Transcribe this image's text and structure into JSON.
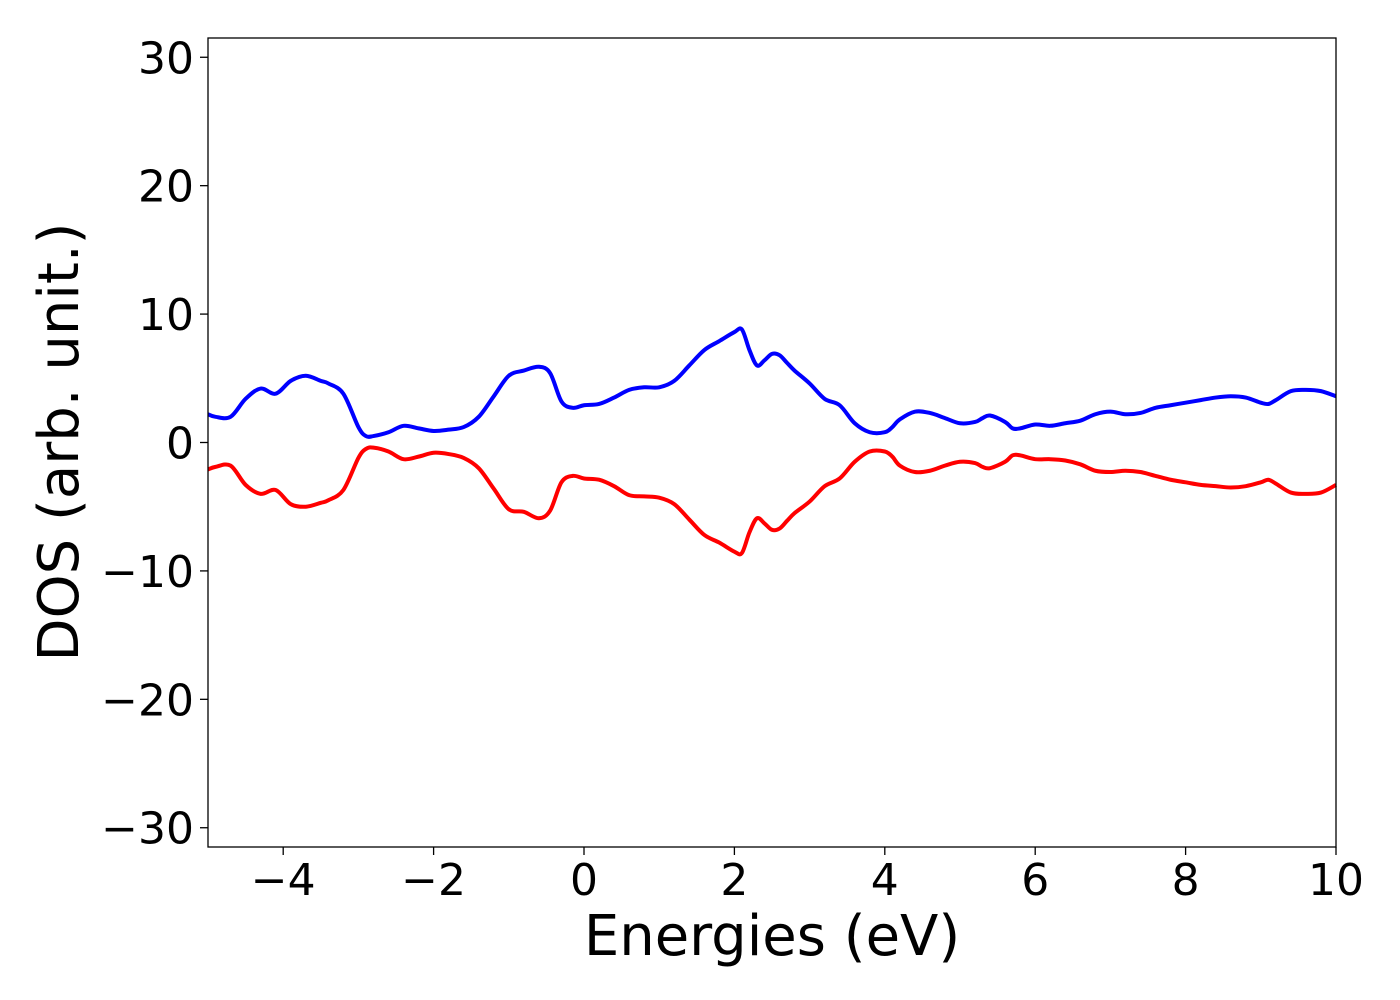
{
  "chart_data": {
    "type": "line",
    "title": "",
    "xlabel": "Energies (eV)",
    "ylabel": "DOS (arb. unit.)",
    "xlim": [
      -5,
      10
    ],
    "ylim": [
      -31.5,
      31.5
    ],
    "xticks": [
      -4,
      -2,
      0,
      2,
      4,
      6,
      8,
      10
    ],
    "xtick_labels": [
      "−4",
      "−2",
      "0",
      "2",
      "4",
      "6",
      "8",
      "10"
    ],
    "yticks": [
      30,
      20,
      10,
      0,
      -10,
      -20,
      -30
    ],
    "ytick_labels": [
      "30",
      "20",
      "10",
      "0",
      "−10",
      "−20",
      "−30"
    ],
    "grid": false,
    "legend": "none",
    "series": [
      {
        "color": "#0000ff",
        "x": [
          -5.0,
          -4.9,
          -4.7,
          -4.5,
          -4.3,
          -4.1,
          -3.9,
          -3.7,
          -3.5,
          -3.4,
          -3.2,
          -3.0,
          -2.9,
          -2.8,
          -2.6,
          -2.4,
          -2.2,
          -2.0,
          -1.8,
          -1.6,
          -1.4,
          -1.2,
          -1.0,
          -0.8,
          -0.6,
          -0.45,
          -0.3,
          -0.15,
          0.0,
          0.2,
          0.4,
          0.6,
          0.8,
          1.0,
          1.2,
          1.4,
          1.6,
          1.8,
          2.0,
          2.1,
          2.2,
          2.3,
          2.4,
          2.5,
          2.6,
          2.7,
          2.8,
          3.0,
          3.2,
          3.4,
          3.6,
          3.8,
          4.0,
          4.1,
          4.2,
          4.4,
          4.6,
          4.8,
          5.0,
          5.2,
          5.3,
          5.4,
          5.6,
          5.7,
          5.8,
          6.0,
          6.2,
          6.4,
          6.6,
          6.8,
          7.0,
          7.2,
          7.4,
          7.6,
          7.8,
          8.0,
          8.2,
          8.4,
          8.6,
          8.8,
          9.0,
          9.1,
          9.2,
          9.4,
          9.6,
          9.8,
          10.0
        ],
        "y": [
          2.2,
          2.0,
          2.0,
          3.4,
          4.2,
          3.8,
          4.8,
          5.2,
          4.8,
          4.6,
          3.8,
          1.2,
          0.5,
          0.5,
          0.8,
          1.3,
          1.1,
          0.9,
          1.0,
          1.2,
          2.0,
          3.6,
          5.2,
          5.6,
          5.9,
          5.4,
          3.2,
          2.7,
          2.9,
          3.0,
          3.5,
          4.1,
          4.3,
          4.3,
          4.8,
          6.0,
          7.2,
          7.9,
          8.6,
          8.8,
          7.2,
          6.0,
          6.4,
          6.9,
          6.8,
          6.2,
          5.6,
          4.6,
          3.4,
          2.9,
          1.5,
          0.8,
          0.8,
          1.2,
          1.8,
          2.4,
          2.3,
          1.9,
          1.5,
          1.6,
          1.9,
          2.1,
          1.6,
          1.1,
          1.1,
          1.4,
          1.3,
          1.5,
          1.7,
          2.2,
          2.4,
          2.2,
          2.3,
          2.7,
          2.9,
          3.1,
          3.3,
          3.5,
          3.6,
          3.5,
          3.1,
          3.0,
          3.3,
          4.0,
          4.1,
          4.0,
          3.6
        ]
      },
      {
        "color": "#ff0000",
        "x": [
          -5.0,
          -4.9,
          -4.7,
          -4.5,
          -4.3,
          -4.1,
          -3.9,
          -3.7,
          -3.5,
          -3.4,
          -3.2,
          -3.0,
          -2.9,
          -2.8,
          -2.6,
          -2.4,
          -2.2,
          -2.0,
          -1.8,
          -1.6,
          -1.4,
          -1.2,
          -1.0,
          -0.8,
          -0.6,
          -0.45,
          -0.3,
          -0.15,
          0.0,
          0.2,
          0.4,
          0.6,
          0.8,
          1.0,
          1.2,
          1.4,
          1.6,
          1.8,
          2.0,
          2.1,
          2.2,
          2.3,
          2.4,
          2.5,
          2.6,
          2.7,
          2.8,
          3.0,
          3.2,
          3.4,
          3.6,
          3.8,
          4.0,
          4.1,
          4.2,
          4.4,
          4.6,
          4.8,
          5.0,
          5.2,
          5.3,
          5.4,
          5.6,
          5.7,
          5.8,
          6.0,
          6.2,
          6.4,
          6.6,
          6.8,
          7.0,
          7.2,
          7.4,
          7.6,
          7.8,
          8.0,
          8.2,
          8.4,
          8.6,
          8.8,
          9.0,
          9.1,
          9.2,
          9.4,
          9.6,
          9.8,
          10.0
        ],
        "y": [
          -2.1,
          -1.9,
          -1.8,
          -3.3,
          -4.0,
          -3.7,
          -4.8,
          -5.0,
          -4.7,
          -4.5,
          -3.7,
          -1.2,
          -0.5,
          -0.4,
          -0.7,
          -1.3,
          -1.1,
          -0.8,
          -0.9,
          -1.2,
          -2.0,
          -3.6,
          -5.2,
          -5.4,
          -5.9,
          -5.3,
          -3.1,
          -2.6,
          -2.8,
          -2.9,
          -3.4,
          -4.1,
          -4.2,
          -4.3,
          -4.8,
          -6.0,
          -7.2,
          -7.8,
          -8.5,
          -8.6,
          -7.0,
          -5.9,
          -6.3,
          -6.8,
          -6.7,
          -6.1,
          -5.5,
          -4.6,
          -3.4,
          -2.8,
          -1.5,
          -0.7,
          -0.7,
          -1.1,
          -1.8,
          -2.3,
          -2.2,
          -1.8,
          -1.5,
          -1.6,
          -1.9,
          -2.0,
          -1.5,
          -1.0,
          -1.0,
          -1.3,
          -1.3,
          -1.4,
          -1.7,
          -2.2,
          -2.3,
          -2.2,
          -2.3,
          -2.6,
          -2.9,
          -3.1,
          -3.3,
          -3.4,
          -3.5,
          -3.4,
          -3.1,
          -2.9,
          -3.2,
          -3.9,
          -4.0,
          -3.9,
          -3.3
        ]
      }
    ]
  }
}
